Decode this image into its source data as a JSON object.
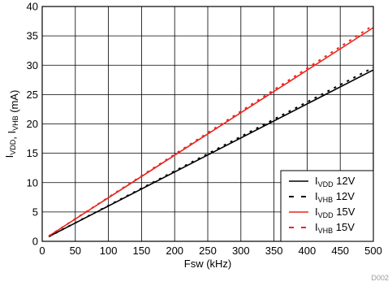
{
  "chart_data": {
    "type": "line",
    "xlabel": "Fsw (kHz)",
    "ylabel_parts": [
      {
        "text": "I",
        "sub": "VDD"
      },
      {
        "text": ", I",
        "sub": "VHB"
      },
      {
        "text": " (mA)",
        "sub": ""
      }
    ],
    "xlim": [
      0,
      500
    ],
    "ylim": [
      0,
      40
    ],
    "xticks": [
      0,
      50,
      100,
      150,
      200,
      250,
      300,
      350,
      400,
      450,
      500
    ],
    "yticks": [
      0,
      5,
      10,
      15,
      20,
      25,
      30,
      35,
      40
    ],
    "grid": true,
    "legend_position": "bottom-right",
    "figure_id": "D002",
    "series": [
      {
        "name_main": "I",
        "name_sub": "VDD",
        "name_suffix": " 12V",
        "color": "#000000",
        "dash": "solid",
        "x": [
          10,
          500
        ],
        "y": [
          0.8,
          29.2
        ]
      },
      {
        "name_main": "I",
        "name_sub": "VHB",
        "name_suffix": " 12V",
        "color": "#000000",
        "dash": "dashed",
        "x": [
          10,
          500
        ],
        "y": [
          0.8,
          29.6
        ]
      },
      {
        "name_main": "I",
        "name_sub": "VDD",
        "name_suffix": " 15V",
        "color": "#e8251f",
        "dash": "solid",
        "x": [
          10,
          500
        ],
        "y": [
          0.9,
          36.4
        ]
      },
      {
        "name_main": "I",
        "name_sub": "VHB",
        "name_suffix": " 15V",
        "color": "#e8251f",
        "dash": "dashed",
        "x": [
          10,
          500
        ],
        "y": [
          0.9,
          36.8
        ]
      }
    ]
  }
}
